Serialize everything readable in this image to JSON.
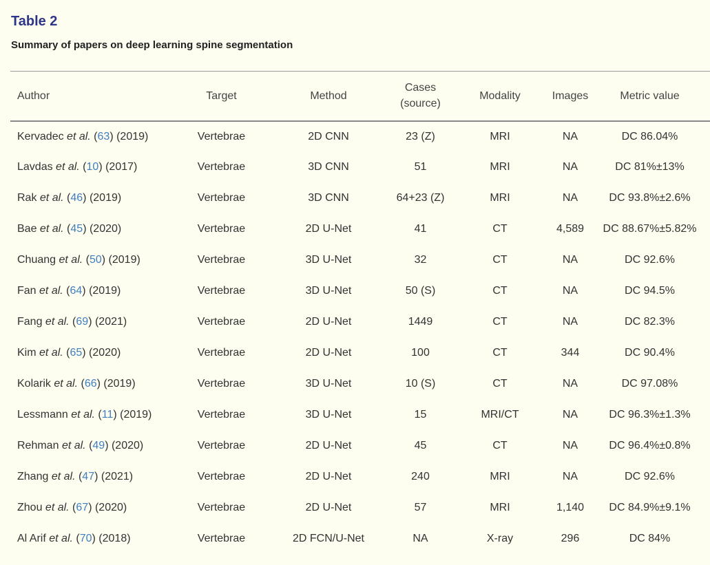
{
  "table": {
    "label": "Table 2",
    "caption": "Summary of papers on deep learning spine segmentation",
    "headers": {
      "author": "Author",
      "target": "Target",
      "method": "Method",
      "cases_line1": "Cases",
      "cases_line2": "(source)",
      "modality": "Modality",
      "images": "Images",
      "metric": "Metric value"
    },
    "rows": [
      {
        "name": "Kervadec",
        "etal": "et al.",
        "open": " (",
        "ref": "63",
        "close": ") (2019)",
        "target": "Vertebrae",
        "method": "2D CNN",
        "cases": "23 (Z)",
        "modality": "MRI",
        "images": "NA",
        "metric": "DC 86.04%"
      },
      {
        "name": "Lavdas",
        "etal": "et al.",
        "open": " (",
        "ref": "10",
        "close": ") (2017)",
        "target": "Vertebrae",
        "method": "3D CNN",
        "cases": "51",
        "modality": "MRI",
        "images": "NA",
        "metric": "DC 81%±13%"
      },
      {
        "name": "Rak",
        "etal": "et al.",
        "open": " (",
        "ref": "46",
        "close": ") (2019)",
        "target": "Vertebrae",
        "method": "3D CNN",
        "cases": "64+23 (Z)",
        "modality": "MRI",
        "images": "NA",
        "metric": "DC 93.8%±2.6%"
      },
      {
        "name": "Bae",
        "etal": "et al.",
        "open": " (",
        "ref": "45",
        "close": ") (2020)",
        "target": "Vertebrae",
        "method": "2D U-Net",
        "cases": "41",
        "modality": "CT",
        "images": "4,589",
        "metric": "DC 88.67%±5.82%"
      },
      {
        "name": "Chuang",
        "etal": "et al.",
        "open": " (",
        "ref": "50",
        "close": ") (2019)",
        "target": "Vertebrae",
        "method": "3D U-Net",
        "cases": "32",
        "modality": "CT",
        "images": "NA",
        "metric": "DC 92.6%"
      },
      {
        "name": "Fan",
        "etal": "et al.",
        "open": " (",
        "ref": "64",
        "close": ") (2019)",
        "target": "Vertebrae",
        "method": "3D U-Net",
        "cases": "50 (S)",
        "modality": "CT",
        "images": "NA",
        "metric": "DC 94.5%"
      },
      {
        "name": "Fang",
        "etal": "et al.",
        "open": " (",
        "ref": "69",
        "close": ") (2021)",
        "target": "Vertebrae",
        "method": "2D U-Net",
        "cases": "1449",
        "modality": "CT",
        "images": "NA",
        "metric": "DC 82.3%"
      },
      {
        "name": "Kim",
        "etal": "et al.",
        "open": " (",
        "ref": "65",
        "close": ") (2020)",
        "target": "Vertebrae",
        "method": "2D U-Net",
        "cases": "100",
        "modality": "CT",
        "images": "344",
        "metric": "DC 90.4%"
      },
      {
        "name": "Kolarik",
        "etal": "et al.",
        "open": " (",
        "ref": "66",
        "close": ") (2019)",
        "target": "Vertebrae",
        "method": "3D U-Net",
        "cases": "10 (S)",
        "modality": "CT",
        "images": "NA",
        "metric": "DC 97.08%"
      },
      {
        "name": "Lessmann",
        "etal": "et al.",
        "open": " (",
        "ref": "11",
        "close": ") (2019)",
        "target": "Vertebrae",
        "method": "3D U-Net",
        "cases": "15",
        "modality": "MRI/CT",
        "images": "NA",
        "metric": "DC 96.3%±1.3%"
      },
      {
        "name": "Rehman",
        "etal": "et al.",
        "open": " (",
        "ref": "49",
        "close": ") (2020)",
        "target": "Vertebrae",
        "method": "2D U-Net",
        "cases": "45",
        "modality": "CT",
        "images": "NA",
        "metric": "DC 96.4%±0.8%"
      },
      {
        "name": "Zhang",
        "etal": "et al.",
        "open": " (",
        "ref": "47",
        "close": ") (2021)",
        "target": "Vertebrae",
        "method": "2D U-Net",
        "cases": "240",
        "modality": "MRI",
        "images": "NA",
        "metric": "DC 92.6%"
      },
      {
        "name": "Zhou",
        "etal": "et al.",
        "open": " (",
        "ref": "67",
        "close": ") (2020)",
        "target": "Vertebrae",
        "method": "2D U-Net",
        "cases": "57",
        "modality": "MRI",
        "images": "1,140",
        "metric": "DC 84.9%±9.1%"
      },
      {
        "name": "Al Arif",
        "etal": "et al.",
        "open": " (",
        "ref": "70",
        "close": ") (2018)",
        "target": "Vertebrae",
        "method": "2D FCN/U-Net",
        "cases": "NA",
        "modality": "X-ray",
        "images": "296",
        "metric": "DC 84%"
      }
    ]
  }
}
